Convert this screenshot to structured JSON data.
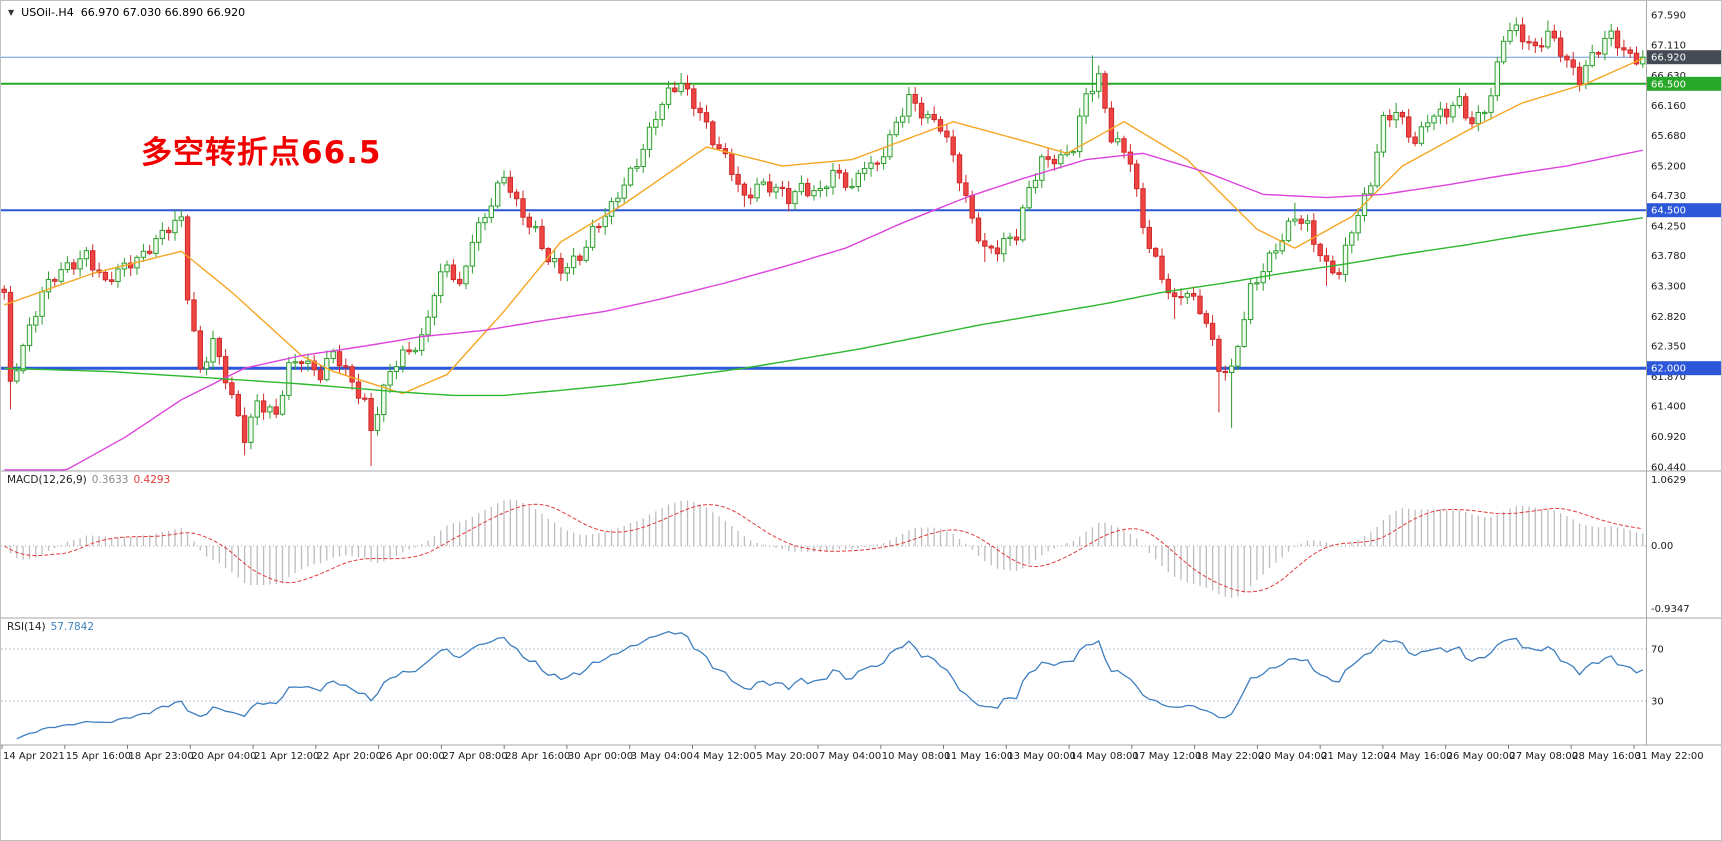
{
  "header": {
    "dropdown_icon": "▼",
    "symbol_period": "USOil-.H4",
    "ohlc": "66.970 67.030 66.890 66.920"
  },
  "main_chart": {
    "annotation": {
      "text": "多空转折点66.5",
      "color": "#f20000"
    },
    "price_ticks": [
      "67.590",
      "67.110",
      "66.630",
      "66.160",
      "65.680",
      "65.200",
      "64.730",
      "64.250",
      "63.780",
      "63.300",
      "62.820",
      "62.350",
      "61.870",
      "61.400",
      "60.920",
      "60.440"
    ],
    "levels": [
      {
        "name": "current-price-line",
        "price": 66.92,
        "label": "66.920",
        "line_color": "#6699dd",
        "badge_color": "#444b54",
        "width": 1
      },
      {
        "name": "pivot-line-66500",
        "price": 66.5,
        "label": "66.500",
        "line_color": "#28a828",
        "badge_color": "#28a828",
        "width": 2
      },
      {
        "name": "support-line-64500",
        "price": 64.5,
        "label": "64.500",
        "line_color": "#2b57d8",
        "badge_color": "#2b57d8",
        "width": 2
      },
      {
        "name": "support-line-62000",
        "price": 62.0,
        "label": "62.000",
        "line_color": "#2b57d8",
        "badge_color": "#2b57d8",
        "width": 3
      }
    ]
  },
  "palette": {
    "bull_stroke": "#2f9e2f",
    "bull_fill": "#eefbee",
    "bear_stroke": "#cf2a2a",
    "bear_fill": "#ef4444",
    "macd_hist": "#bdbdbd",
    "macd_signal": "#e03c3c",
    "macd_zero": "#9e9e9e",
    "rsi_line": "#3f7fbf",
    "rsi_level": "#b6c6da",
    "axis_text": "#1a1a1a",
    "separator": "#a6a6a6"
  },
  "chart_data": {
    "type": "candlestick",
    "symbol": "USOil",
    "timeframe": "H4",
    "ohlc_current": {
      "open": 66.97,
      "high": 67.03,
      "low": 66.89,
      "close": 66.92
    },
    "y_axis_ticks": [
      67.59,
      67.11,
      66.63,
      66.16,
      65.68,
      65.2,
      64.73,
      64.25,
      63.78,
      63.3,
      62.82,
      62.35,
      61.87,
      61.4,
      60.92,
      60.44
    ],
    "candle_count": 260,
    "price_path_anchors": [
      [
        0,
        63.15
      ],
      [
        1,
        61.7
      ],
      [
        3,
        62.4
      ],
      [
        6,
        63.2
      ],
      [
        9,
        63.5
      ],
      [
        13,
        63.85
      ],
      [
        16,
        63.3
      ],
      [
        20,
        63.7
      ],
      [
        24,
        64.0
      ],
      [
        28,
        64.35
      ],
      [
        29,
        63.2
      ],
      [
        31,
        62.0
      ],
      [
        33,
        62.4
      ],
      [
        36,
        61.5
      ],
      [
        38,
        60.95
      ],
      [
        40,
        61.5
      ],
      [
        43,
        61.2
      ],
      [
        45,
        62.0
      ],
      [
        47,
        62.2
      ],
      [
        50,
        61.9
      ],
      [
        52,
        62.2
      ],
      [
        55,
        61.8
      ],
      [
        57,
        61.5
      ],
      [
        58,
        61.05
      ],
      [
        61,
        61.9
      ],
      [
        63,
        62.2
      ],
      [
        66,
        62.5
      ],
      [
        68,
        63.2
      ],
      [
        70,
        63.6
      ],
      [
        72,
        63.25
      ],
      [
        74,
        64.1
      ],
      [
        77,
        64.6
      ],
      [
        79,
        65.0
      ],
      [
        81,
        64.6
      ],
      [
        84,
        64.2
      ],
      [
        86,
        63.7
      ],
      [
        88,
        63.5
      ],
      [
        91,
        63.8
      ],
      [
        93,
        64.2
      ],
      [
        96,
        64.5
      ],
      [
        98,
        64.9
      ],
      [
        100,
        65.3
      ],
      [
        103,
        66.0
      ],
      [
        105,
        66.3
      ],
      [
        107,
        66.5
      ],
      [
        110,
        66.1
      ],
      [
        112,
        65.6
      ],
      [
        115,
        65.1
      ],
      [
        117,
        64.7
      ],
      [
        119,
        64.95
      ],
      [
        122,
        64.8
      ],
      [
        124,
        64.65
      ],
      [
        126,
        64.9
      ],
      [
        129,
        64.8
      ],
      [
        131,
        65.05
      ],
      [
        134,
        64.85
      ],
      [
        136,
        65.3
      ],
      [
        138,
        65.2
      ],
      [
        141,
        65.8
      ],
      [
        143,
        66.3
      ],
      [
        145,
        66.1
      ],
      [
        148,
        65.8
      ],
      [
        150,
        65.3
      ],
      [
        153,
        64.4
      ],
      [
        155,
        63.9
      ],
      [
        157,
        63.85
      ],
      [
        160,
        64.1
      ],
      [
        162,
        64.9
      ],
      [
        164,
        65.3
      ],
      [
        167,
        65.25
      ],
      [
        169,
        65.5
      ],
      [
        171,
        66.4
      ],
      [
        173,
        66.6
      ],
      [
        175,
        65.6
      ],
      [
        178,
        65.3
      ],
      [
        180,
        64.3
      ],
      [
        183,
        63.4
      ],
      [
        185,
        63.0
      ],
      [
        187,
        63.25
      ],
      [
        190,
        62.8
      ],
      [
        192,
        61.95
      ],
      [
        194,
        61.9
      ],
      [
        197,
        63.3
      ],
      [
        199,
        63.6
      ],
      [
        202,
        64.0
      ],
      [
        204,
        64.4
      ],
      [
        206,
        64.3
      ],
      [
        209,
        63.6
      ],
      [
        211,
        63.45
      ],
      [
        213,
        64.2
      ],
      [
        216,
        65.0
      ],
      [
        218,
        65.9
      ],
      [
        220,
        66.0
      ],
      [
        223,
        65.6
      ],
      [
        225,
        66.0
      ],
      [
        228,
        66.0
      ],
      [
        230,
        66.2
      ],
      [
        232,
        65.9
      ],
      [
        235,
        66.3
      ],
      [
        237,
        67.2
      ],
      [
        239,
        67.35
      ],
      [
        242,
        67.1
      ],
      [
        244,
        67.3
      ],
      [
        247,
        66.8
      ],
      [
        249,
        66.6
      ],
      [
        251,
        67.0
      ],
      [
        254,
        67.25
      ],
      [
        256,
        66.95
      ],
      [
        259,
        66.92
      ]
    ],
    "wick_overrides": [
      {
        "i": 1,
        "low": 61.35
      },
      {
        "i": 27,
        "high": 64.5
      },
      {
        "i": 38,
        "low": 60.62
      },
      {
        "i": 58,
        "low": 60.45
      },
      {
        "i": 79,
        "high": 65.12
      },
      {
        "i": 107,
        "high": 66.67
      },
      {
        "i": 117,
        "low": 64.55
      },
      {
        "i": 143,
        "high": 66.45
      },
      {
        "i": 155,
        "low": 63.68
      },
      {
        "i": 172,
        "high": 66.95
      },
      {
        "i": 185,
        "low": 62.78
      },
      {
        "i": 192,
        "low": 61.3
      },
      {
        "i": 194,
        "low": 61.05
      },
      {
        "i": 204,
        "high": 64.62
      },
      {
        "i": 209,
        "low": 63.3
      },
      {
        "i": 220,
        "high": 66.2
      },
      {
        "i": 239,
        "high": 67.55
      },
      {
        "i": 244,
        "high": 67.5
      },
      {
        "i": 249,
        "low": 66.4
      },
      {
        "i": 254,
        "high": 67.45
      }
    ],
    "moving_averages": [
      {
        "name": "ma-fast-orange",
        "color": "#f5a623",
        "anchors": [
          [
            0,
            63.0
          ],
          [
            14,
            63.5
          ],
          [
            28,
            63.85
          ],
          [
            36,
            63.2
          ],
          [
            47,
            62.2
          ],
          [
            52,
            61.95
          ],
          [
            63,
            61.6
          ],
          [
            70,
            61.9
          ],
          [
            79,
            62.9
          ],
          [
            88,
            64.0
          ],
          [
            98,
            64.6
          ],
          [
            111,
            65.5
          ],
          [
            123,
            65.2
          ],
          [
            134,
            65.3
          ],
          [
            150,
            65.9
          ],
          [
            161,
            65.6
          ],
          [
            168,
            65.4
          ],
          [
            177,
            65.9
          ],
          [
            187,
            65.3
          ],
          [
            198,
            64.2
          ],
          [
            204,
            63.9
          ],
          [
            213,
            64.4
          ],
          [
            221,
            65.2
          ],
          [
            232,
            65.8
          ],
          [
            240,
            66.2
          ],
          [
            250,
            66.5
          ],
          [
            259,
            66.9
          ]
        ]
      },
      {
        "name": "ma-mid-magenta",
        "color": "#dd44dd",
        "anchors": [
          [
            0,
            59.9
          ],
          [
            10,
            60.4
          ],
          [
            19,
            60.9
          ],
          [
            28,
            61.5
          ],
          [
            38,
            62.0
          ],
          [
            47,
            62.2
          ],
          [
            57,
            62.35
          ],
          [
            66,
            62.5
          ],
          [
            76,
            62.6
          ],
          [
            85,
            62.75
          ],
          [
            95,
            62.9
          ],
          [
            104,
            63.1
          ],
          [
            114,
            63.35
          ],
          [
            123,
            63.6
          ],
          [
            133,
            63.9
          ],
          [
            142,
            64.3
          ],
          [
            152,
            64.7
          ],
          [
            161,
            65.0
          ],
          [
            171,
            65.3
          ],
          [
            180,
            65.4
          ],
          [
            190,
            65.1
          ],
          [
            199,
            64.75
          ],
          [
            209,
            64.7
          ],
          [
            218,
            64.75
          ],
          [
            228,
            64.9
          ],
          [
            237,
            65.05
          ],
          [
            247,
            65.2
          ],
          [
            259,
            65.45
          ]
        ]
      },
      {
        "name": "ma-slow-green",
        "color": "#2db82d",
        "anchors": [
          [
            0,
            62.0
          ],
          [
            16,
            61.95
          ],
          [
            32,
            61.85
          ],
          [
            47,
            61.75
          ],
          [
            63,
            61.62
          ],
          [
            71,
            61.57
          ],
          [
            79,
            61.57
          ],
          [
            88,
            61.65
          ],
          [
            98,
            61.75
          ],
          [
            107,
            61.87
          ],
          [
            117,
            62.0
          ],
          [
            126,
            62.15
          ],
          [
            135,
            62.3
          ],
          [
            145,
            62.5
          ],
          [
            154,
            62.68
          ],
          [
            164,
            62.85
          ],
          [
            174,
            63.02
          ],
          [
            183,
            63.2
          ],
          [
            193,
            63.35
          ],
          [
            202,
            63.5
          ],
          [
            212,
            63.65
          ],
          [
            221,
            63.8
          ],
          [
            231,
            63.95
          ],
          [
            240,
            64.1
          ],
          [
            250,
            64.25
          ],
          [
            259,
            64.38
          ]
        ]
      }
    ],
    "time_labels": [
      "14 Apr 2021",
      "15 Apr 16:00",
      "18 Apr 23:00",
      "20 Apr 04:00",
      "21 Apr 12:00",
      "22 Apr 20:00",
      "26 Apr 00:00",
      "27 Apr 08:00",
      "28 Apr 16:00",
      "30 Apr 00:00",
      "3 May 04:00",
      "4 May 12:00",
      "5 May 20:00",
      "7 May 04:00",
      "10 May 08:00",
      "11 May 16:00",
      "13 May 00:00",
      "14 May 08:00",
      "17 May 12:00",
      "18 May 22:00",
      "20 May 04:00",
      "21 May 12:00",
      "24 May 16:00",
      "26 May 00:00",
      "27 May 08:00",
      "28 May 16:00",
      "31 May 22:00"
    ],
    "macd": {
      "label": "MACD(12,26,9)",
      "value_main": "0.3633",
      "value_signal": "0.4293",
      "axis_max": "1.0629",
      "axis_zero": "0.00",
      "axis_min": "-0.9347",
      "fast": 12,
      "slow": 26,
      "signal": 9
    },
    "rsi": {
      "label": "RSI(14)",
      "value": "57.7842",
      "period": 14,
      "levels": [
        70,
        30
      ]
    }
  }
}
